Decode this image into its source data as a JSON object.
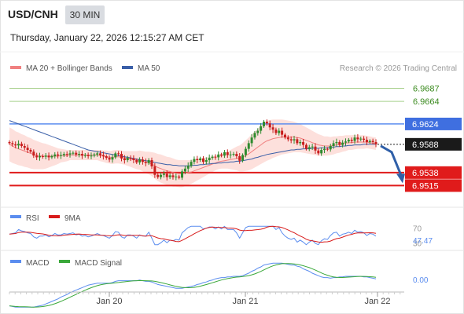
{
  "header": {
    "symbol": "USD/CNH",
    "interval": "30 MIN",
    "datetime": "Thursday, January 22, 2026 12:15:27 AM CET"
  },
  "legend": {
    "ma20": "MA 20 + Bollinger Bands",
    "ma50": "MA 50",
    "credit": "Research © 2026 Trading Central"
  },
  "rsi_legend": {
    "rsi": "RSI",
    "ma": "9MA"
  },
  "macd_legend": {
    "macd": "MACD",
    "signal": "MACD Signal"
  },
  "colors": {
    "bullish": "#2e8b2e",
    "bearish": "#c81e1e",
    "ma20": "#f08080",
    "ma50": "#3a5fa8",
    "band_fill": "#fde0dc",
    "resistance": "#5b8def",
    "support": "#e01b1b",
    "target_green": "#a8d08d",
    "arrow": "#2f5fa8",
    "macd": "#5b8def",
    "signal": "#3aa83a"
  },
  "chart_data": [
    {
      "type": "candlestick",
      "ylim": [
        6.9485,
        6.971
      ],
      "x_labels": [
        "Jan 20",
        "Jan 21",
        "Jan 22"
      ],
      "levels": [
        {
          "value": 6.9687,
          "label": "6.9687",
          "kind": "target"
        },
        {
          "value": 6.9664,
          "label": "6.9664",
          "kind": "target"
        },
        {
          "value": 6.9624,
          "label": "6.9624",
          "kind": "resistance"
        },
        {
          "value": 6.9538,
          "label": "6.9538",
          "kind": "support"
        },
        {
          "value": 6.9515,
          "label": "6.9515",
          "kind": "support"
        }
      ],
      "last_price": {
        "value": 6.9588,
        "label": "6.9588"
      },
      "closes": [
        6.959,
        6.9588,
        6.9586,
        6.9589,
        6.9585,
        6.9582,
        6.9578,
        6.9575,
        6.9568,
        6.9565,
        6.9567,
        6.9566,
        6.9568,
        6.9565,
        6.9567,
        6.957,
        6.9568,
        6.9569,
        6.9571,
        6.957,
        6.9572,
        6.9573,
        6.957,
        6.9571,
        6.9568,
        6.9569,
        6.9567,
        6.9568,
        6.957,
        6.9572,
        6.9569,
        6.9567,
        6.9564,
        6.9561,
        6.9565,
        6.9572,
        6.9571,
        6.9563,
        6.956,
        6.9564,
        6.9563,
        6.956,
        6.9556,
        6.9561,
        6.9557,
        6.9555,
        6.956,
        6.9549,
        6.9534,
        6.953,
        6.9534,
        6.9536,
        6.953,
        6.9533,
        6.953,
        6.9531,
        6.9529,
        6.954,
        6.9545,
        6.955,
        6.9557,
        6.9562,
        6.956,
        6.9563,
        6.9557,
        6.956,
        6.9564,
        6.9566,
        6.9565,
        6.957,
        6.9568,
        6.9574,
        6.9569,
        6.957,
        6.9571,
        6.9567,
        6.9559,
        6.9569,
        6.958,
        6.959,
        6.96,
        6.9608,
        6.9612,
        6.962,
        6.9628,
        6.9625,
        6.9618,
        6.9614,
        6.9608,
        6.9612,
        6.9605,
        6.96,
        6.9597,
        6.9595,
        6.9597,
        6.959,
        6.9592,
        6.9587,
        6.958,
        6.9583,
        6.9584,
        6.9577,
        6.9572,
        6.9578,
        6.958,
        6.9579,
        6.9585,
        6.959,
        6.9592,
        6.9587,
        6.9591,
        6.9593,
        6.9596,
        6.9594,
        6.96,
        6.9597,
        6.9598,
        6.9596,
        6.9592,
        6.9594,
        6.9592,
        6.9588
      ],
      "ma20": [
        6.9588,
        6.9585,
        6.9582,
        6.958,
        6.9578,
        6.9576,
        6.9574,
        6.9572,
        6.957,
        6.9569,
        6.9568,
        6.9567,
        6.9567,
        6.9567,
        6.9567,
        6.9567,
        6.9567,
        6.9568,
        6.9568,
        6.9568,
        6.9569,
        6.9569,
        6.9569,
        6.9569,
        6.9569,
        6.9569,
        6.9569,
        6.9569,
        6.9569,
        6.9569,
        6.9568,
        6.9567,
        6.9566,
        6.9565,
        6.9565,
        6.9566,
        6.9566,
        6.9565,
        6.9564,
        6.9563,
        6.9562,
        6.9561,
        6.956,
        6.956,
        6.9558,
        6.9556,
        6.9555,
        6.9553,
        6.955,
        6.9547,
        6.9545,
        6.9543,
        6.9541,
        6.954,
        6.9538,
        6.9537,
        6.9536,
        6.9536,
        6.9537,
        6.9538,
        6.9539,
        6.9541,
        6.9543,
        6.9545,
        6.9547,
        6.9549,
        6.9551,
        6.9553,
        6.9555,
        6.9557,
        6.9558,
        6.9559,
        6.956,
        6.9561,
        6.9562,
        6.9563,
        6.9563,
        6.9565,
        6.9568,
        6.9571,
        6.9575,
        6.9579,
        6.9583,
        6.9587,
        6.9591,
        6.9594,
        6.9596,
        6.9598,
        6.9599,
        6.96,
        6.9601,
        6.9601,
        6.9601,
        6.9601,
        6.9601,
        6.96,
        6.9599,
        6.9597,
        6.9595,
        6.9593,
        6.9591,
        6.9589,
        6.9587,
        6.9586,
        6.9585,
        6.9585,
        6.9585,
        6.9586,
        6.9587,
        6.9588,
        6.9589,
        6.959,
        6.9591,
        6.9591,
        6.9592,
        6.9592,
        6.9592,
        6.9592,
        6.9592,
        6.9591,
        6.959,
        6.9589
      ],
      "ma50": [
        6.963,
        6.9628,
        6.9626,
        6.9624,
        6.9622,
        6.962,
        6.9618,
        6.9616,
        6.9614,
        6.9612,
        6.961,
        6.9608,
        6.9606,
        6.9604,
        6.9602,
        6.96,
        6.9598,
        6.9596,
        6.9594,
        6.9592,
        6.959,
        6.9588,
        6.9586,
        6.9584,
        6.9582,
        6.958,
        6.9578,
        6.9577,
        6.9576,
        6.9575,
        6.9574,
        6.9573,
        6.9572,
        6.9571,
        6.957,
        6.9569,
        6.9568,
        6.9567,
        6.9566,
        6.9565,
        6.9564,
        6.9563,
        6.9562,
        6.9561,
        6.956,
        6.9559,
        6.9558,
        6.9557,
        6.9556,
        6.9555,
        6.9554,
        6.9553,
        6.9552,
        6.9552,
        6.9551,
        6.9551,
        6.955,
        6.955,
        6.955,
        6.955,
        6.955,
        6.9551,
        6.9551,
        6.9552,
        6.9552,
        6.9553,
        6.9553,
        6.9554,
        6.9554,
        6.9555,
        6.9555,
        6.9556,
        6.9556,
        6.9557,
        6.9557,
        6.9558,
        6.9558,
        6.9559,
        6.956,
        6.9561,
        6.9562,
        6.9564,
        6.9565,
        6.9567,
        6.9568,
        6.957,
        6.9571,
        6.9572,
        6.9573,
        6.9574,
        6.9575,
        6.9576,
        6.9577,
        6.9578,
        6.9578,
        6.9579,
        6.9579,
        6.958,
        6.958,
        6.958,
        6.9581,
        6.9581,
        6.9581,
        6.9582,
        6.9582,
        6.9582,
        6.9583,
        6.9583,
        6.9584,
        6.9584,
        6.9585,
        6.9585,
        6.9586,
        6.9586,
        6.9587,
        6.9587,
        6.9587,
        6.9588,
        6.9588,
        6.9588,
        6.9588,
        6.9588
      ],
      "bb_width": [
        0.003,
        0.003,
        0.0029,
        0.0029,
        0.0028,
        0.0028,
        0.0027,
        0.0027,
        0.0026,
        0.0025,
        0.0024,
        0.0023,
        0.0022,
        0.002,
        0.0018,
        0.0016,
        0.0014,
        0.0012,
        0.0011,
        0.001,
        0.0009,
        0.0009,
        0.0009,
        0.0009,
        0.0009,
        0.0009,
        0.0009,
        0.0009,
        0.0009,
        0.0009,
        0.001,
        0.001,
        0.0011,
        0.0011,
        0.0012,
        0.0012,
        0.0012,
        0.0012,
        0.0012,
        0.0013,
        0.0014,
        0.0015,
        0.0016,
        0.0017,
        0.0018,
        0.0019,
        0.002,
        0.0021,
        0.0023,
        0.0024,
        0.0025,
        0.0025,
        0.0025,
        0.0025,
        0.0025,
        0.0024,
        0.0024,
        0.0024,
        0.0023,
        0.0022,
        0.0021,
        0.002,
        0.0019,
        0.0018,
        0.0017,
        0.0016,
        0.0015,
        0.0014,
        0.0013,
        0.0013,
        0.0013,
        0.0014,
        0.0015,
        0.0017,
        0.0019,
        0.0021,
        0.0023,
        0.0025,
        0.0027,
        0.0029,
        0.0031,
        0.0032,
        0.0033,
        0.0034,
        0.0035,
        0.0035,
        0.0035,
        0.0034,
        0.0033,
        0.0032,
        0.0031,
        0.003,
        0.0029,
        0.0028,
        0.0027,
        0.0026,
        0.0025,
        0.0024,
        0.0023,
        0.0022,
        0.0021,
        0.002,
        0.0019,
        0.0018,
        0.0017,
        0.0017,
        0.0016,
        0.0016,
        0.0015,
        0.0015,
        0.0014,
        0.0014,
        0.0013,
        0.0013,
        0.0013,
        0.0012,
        0.0012,
        0.0012,
        0.0011,
        0.0011,
        0.0011,
        0.0011
      ]
    },
    {
      "type": "line",
      "name": "RSI",
      "ticks": [
        "70",
        "30"
      ],
      "current_label": "47.47",
      "ylim": [
        20,
        80
      ]
    },
    {
      "type": "line",
      "name": "MACD",
      "ticks": [
        "0.00"
      ],
      "ylim": [
        -0.0012,
        0.0016
      ]
    }
  ]
}
